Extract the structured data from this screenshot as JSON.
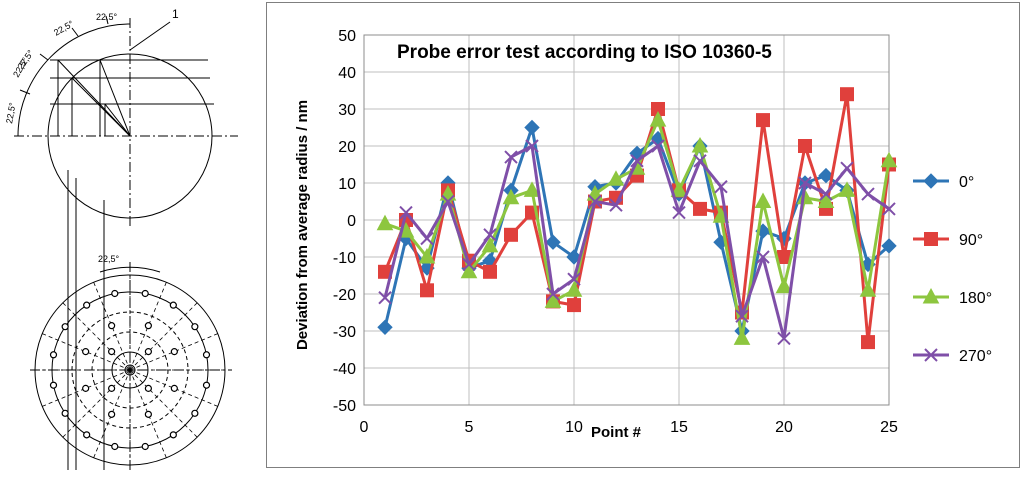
{
  "figure": {
    "callout_label": "1",
    "angle_labels": [
      "22,5°",
      "22,5°",
      "22,5°",
      "22,5°",
      "22,5°"
    ],
    "bottom_angle_label": "22,5°"
  },
  "chart_data": {
    "type": "line",
    "title": "Probe error test according to ISO 10360-5",
    "xlabel": "Point #",
    "ylabel": "Deviation from average radius / nm",
    "xlim": [
      0,
      25
    ],
    "ylim": [
      -50,
      50
    ],
    "x_ticks": [
      0,
      5,
      10,
      15,
      20,
      25
    ],
    "y_ticks": [
      50,
      40,
      30,
      20,
      10,
      0,
      -10,
      -20,
      -30,
      -40,
      -50
    ],
    "grid": true,
    "legend_position": "right",
    "x": [
      1,
      2,
      3,
      4,
      5,
      6,
      7,
      8,
      9,
      10,
      11,
      12,
      13,
      14,
      15,
      16,
      17,
      18,
      19,
      20,
      21,
      22,
      23,
      24,
      25
    ],
    "series": [
      {
        "name": "0°",
        "color": "#2e75b6",
        "marker": "diamond",
        "values": [
          -29,
          -5,
          -13,
          10,
          -13,
          -11,
          8,
          25,
          -6,
          -10,
          9,
          10,
          18,
          22,
          7,
          20,
          -6,
          -30,
          -3,
          -5,
          10,
          12,
          8,
          -12,
          -7
        ]
      },
      {
        "name": "90°",
        "color": "#e0403c",
        "marker": "square",
        "values": [
          -14,
          0,
          -19,
          8,
          -11,
          -14,
          -4,
          2,
          -22,
          -23,
          5,
          6,
          12,
          30,
          8,
          3,
          2,
          -25,
          27,
          -10,
          20,
          3,
          34,
          -33,
          15
        ]
      },
      {
        "name": "180°",
        "color": "#8dc63f",
        "marker": "triangle",
        "values": [
          -1,
          -3,
          -10,
          7,
          -14,
          -7,
          6,
          8,
          -22,
          -19,
          7,
          11,
          14,
          27,
          8,
          20,
          1,
          -32,
          5,
          -18,
          6,
          5,
          8,
          -19,
          16
        ]
      },
      {
        "name": "270°",
        "color": "#7f4fa8",
        "marker": "x",
        "values": [
          -21,
          2,
          -5,
          5,
          -12,
          -4,
          17,
          20,
          -20,
          -16,
          5,
          4,
          16,
          20,
          2,
          16,
          9,
          -26,
          -10,
          -32,
          10,
          7,
          14,
          7,
          3
        ]
      }
    ]
  }
}
